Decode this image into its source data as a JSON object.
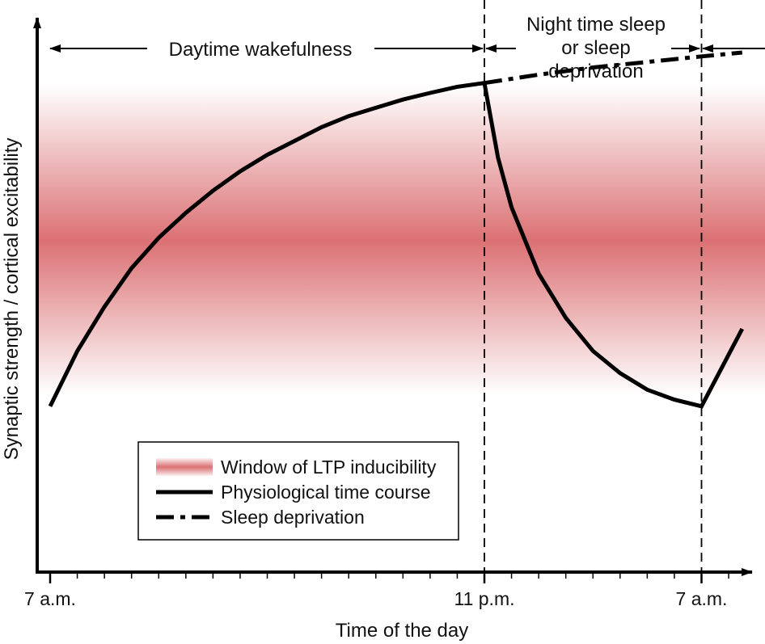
{
  "chart_data": {
    "type": "line",
    "xlabel": "Time of the day",
    "ylabel": "Synaptic strength / cortical excitability",
    "x_unit": "hours",
    "xlim": [
      7,
      32.5
    ],
    "ylim": [
      0,
      100
    ],
    "ticks": [
      {
        "label": "7 a.m.",
        "x": 7
      },
      {
        "label": "11 p.m.",
        "x": 23
      },
      {
        "label": "7 a.m.",
        "x": 31
      }
    ],
    "minor_tick_step": 1,
    "periods": [
      {
        "label": "Daytime wakefulness",
        "from": 7,
        "to": 23
      },
      {
        "label": "Night time sleep\nor sleep\ndeprivation",
        "from": 23,
        "to": 31
      }
    ],
    "band": {
      "name": "Window of LTP inducibility",
      "center": 60,
      "half_width": 28,
      "color": "#d9696c"
    },
    "series": [
      {
        "name": "Physiological time course",
        "style": "solid",
        "color": "#000000",
        "x": [
          7.0,
          8.0,
          9.0,
          10.0,
          11.0,
          12.0,
          13.0,
          14.0,
          15.0,
          16.0,
          17.0,
          18.0,
          19.0,
          20.0,
          21.0,
          22.0,
          23.0,
          23.5,
          24.0,
          25.0,
          26.0,
          27.0,
          28.0,
          29.0,
          30.0,
          31.0,
          32.5
        ],
        "y": [
          30.0,
          40.0,
          48.0,
          55.0,
          60.5,
          65.0,
          69.0,
          72.5,
          75.5,
          78.0,
          80.5,
          82.5,
          84.0,
          85.5,
          86.7,
          87.8,
          88.5,
          75.0,
          66.0,
          54.0,
          46.0,
          40.0,
          36.0,
          33.0,
          31.2,
          30.0,
          44.0
        ]
      },
      {
        "name": "Sleep deprivation",
        "style": "dash-dot",
        "color": "#000000",
        "x": [
          23,
          25,
          27,
          29,
          31,
          32.5
        ],
        "y": [
          88.5,
          90.0,
          91.3,
          92.3,
          93.3,
          94.0
        ]
      }
    ]
  }
}
